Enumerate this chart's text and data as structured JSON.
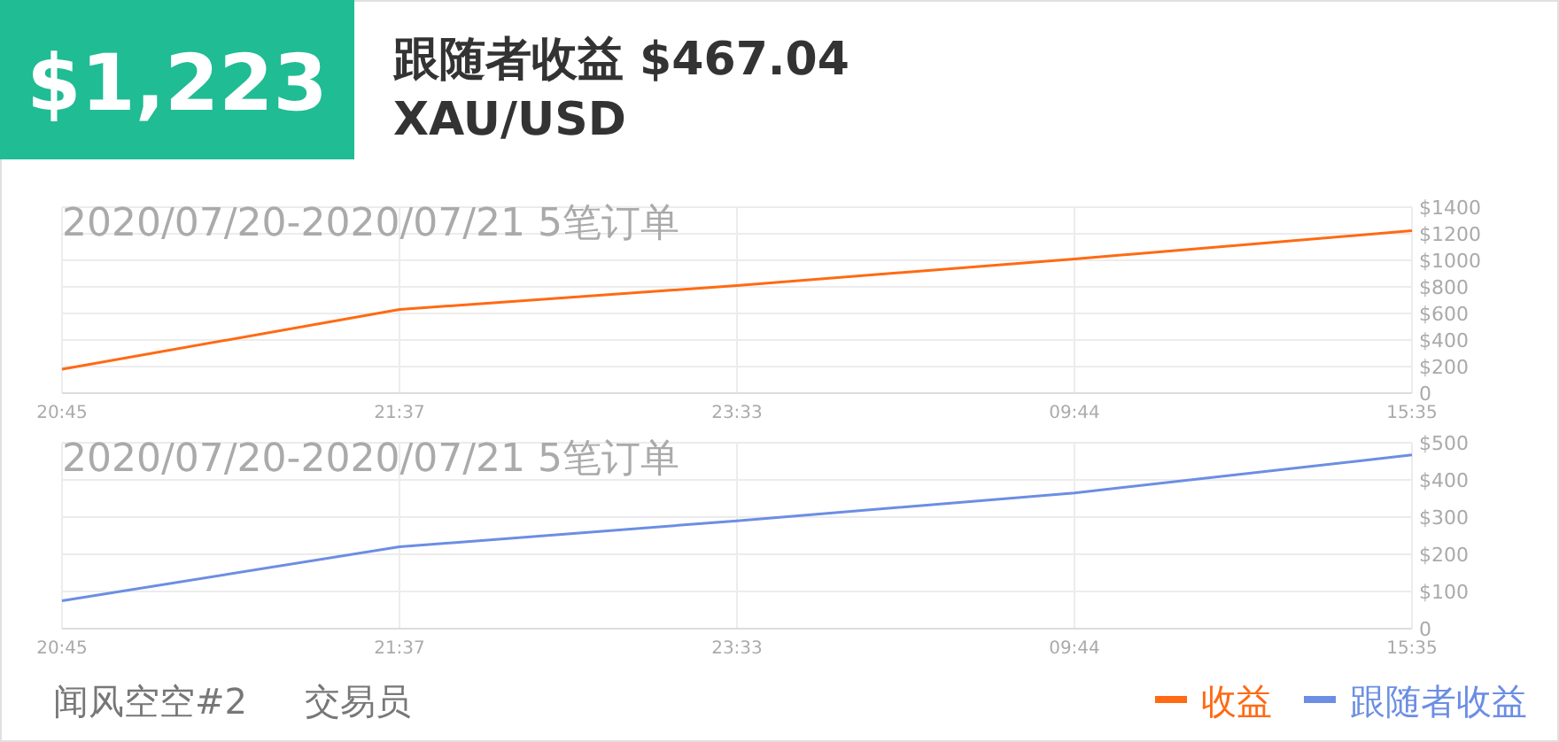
{
  "chart_data": [
    {
      "type": "line",
      "title": "2020/07/20-2020/07/21 5笔订单",
      "annotations": [
        "$1,223",
        "跟随者收益 $467.04",
        "XAU/USD"
      ],
      "categories": [
        "20:45",
        "21:37",
        "23:33",
        "09:44",
        "15:35"
      ],
      "series": [
        {
          "name": "收益",
          "color": "#ff6a13",
          "values": [
            180,
            630,
            810,
            1010,
            1223
          ]
        }
      ],
      "ylim": [
        0,
        1400
      ],
      "yticks": [
        {
          "value": 0,
          "label": "0"
        },
        {
          "value": 200,
          "label": "$200"
        },
        {
          "value": 400,
          "label": "$400"
        },
        {
          "value": 600,
          "label": "$600"
        },
        {
          "value": 800,
          "label": "$800"
        },
        {
          "value": 1000,
          "label": "$1000"
        },
        {
          "value": 1200,
          "label": "$1200"
        },
        {
          "value": 1400,
          "label": "$1400"
        }
      ],
      "grid": true,
      "legend": "bottom right"
    },
    {
      "type": "line",
      "title": "2020/07/20-2020/07/21 5笔订单",
      "annotations": [
        "闻风空空#2",
        "交易员"
      ],
      "categories": [
        "20:45",
        "21:37",
        "23:33",
        "09:44",
        "15:35"
      ],
      "series": [
        {
          "name": "跟随者收益",
          "color": "#6c8ee3",
          "values": [
            75,
            220,
            290,
            365,
            467
          ]
        }
      ],
      "ylim": [
        0,
        500
      ],
      "yticks": [
        {
          "value": 0,
          "label": "0"
        },
        {
          "value": 100,
          "label": "$100"
        },
        {
          "value": 200,
          "label": "$200"
        },
        {
          "value": 300,
          "label": "$300"
        },
        {
          "value": 400,
          "label": "$400"
        },
        {
          "value": 500,
          "label": "$500"
        }
      ],
      "grid": true,
      "legend": "bottom right"
    }
  ]
}
